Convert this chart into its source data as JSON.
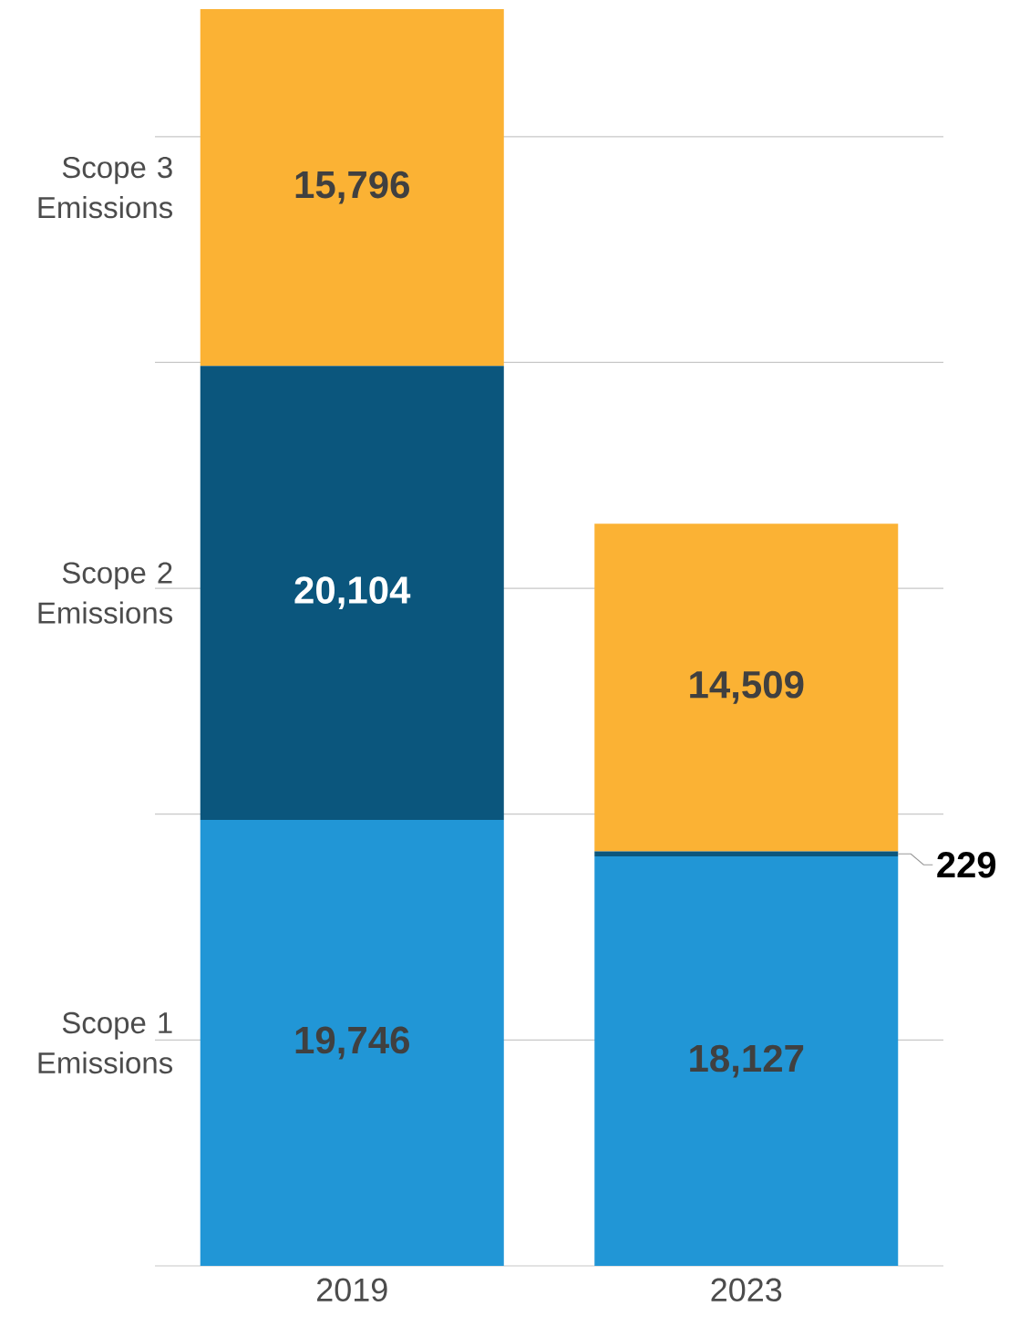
{
  "chart_data": {
    "type": "bar",
    "stacked": true,
    "categories": [
      "2019",
      "2023"
    ],
    "series": [
      {
        "name": "Scope 1 Emissions",
        "color": "#2196d6",
        "values": [
          19746,
          18127
        ],
        "value_labels": [
          "19,746",
          "18,127"
        ]
      },
      {
        "name": "Scope 2 Emissions",
        "color": "#0b567d",
        "values": [
          20104,
          229
        ],
        "value_labels": [
          "20,104",
          "229"
        ]
      },
      {
        "name": "Scope 3 Emissions",
        "color": "#fbb234",
        "values": [
          15796,
          14509
        ],
        "value_labels": [
          "15,796",
          "14,509"
        ]
      }
    ],
    "ylim": [
      0,
      55646
    ],
    "yticks": [
      {
        "value": 0,
        "label": null
      },
      {
        "value": 10000,
        "label": null
      },
      {
        "value": 20000,
        "label": null
      },
      {
        "value": 30000,
        "label": null
      },
      {
        "value": 40000,
        "label": null
      },
      {
        "value": 50000,
        "label": null
      }
    ],
    "grid": "y",
    "legend": false
  }
}
